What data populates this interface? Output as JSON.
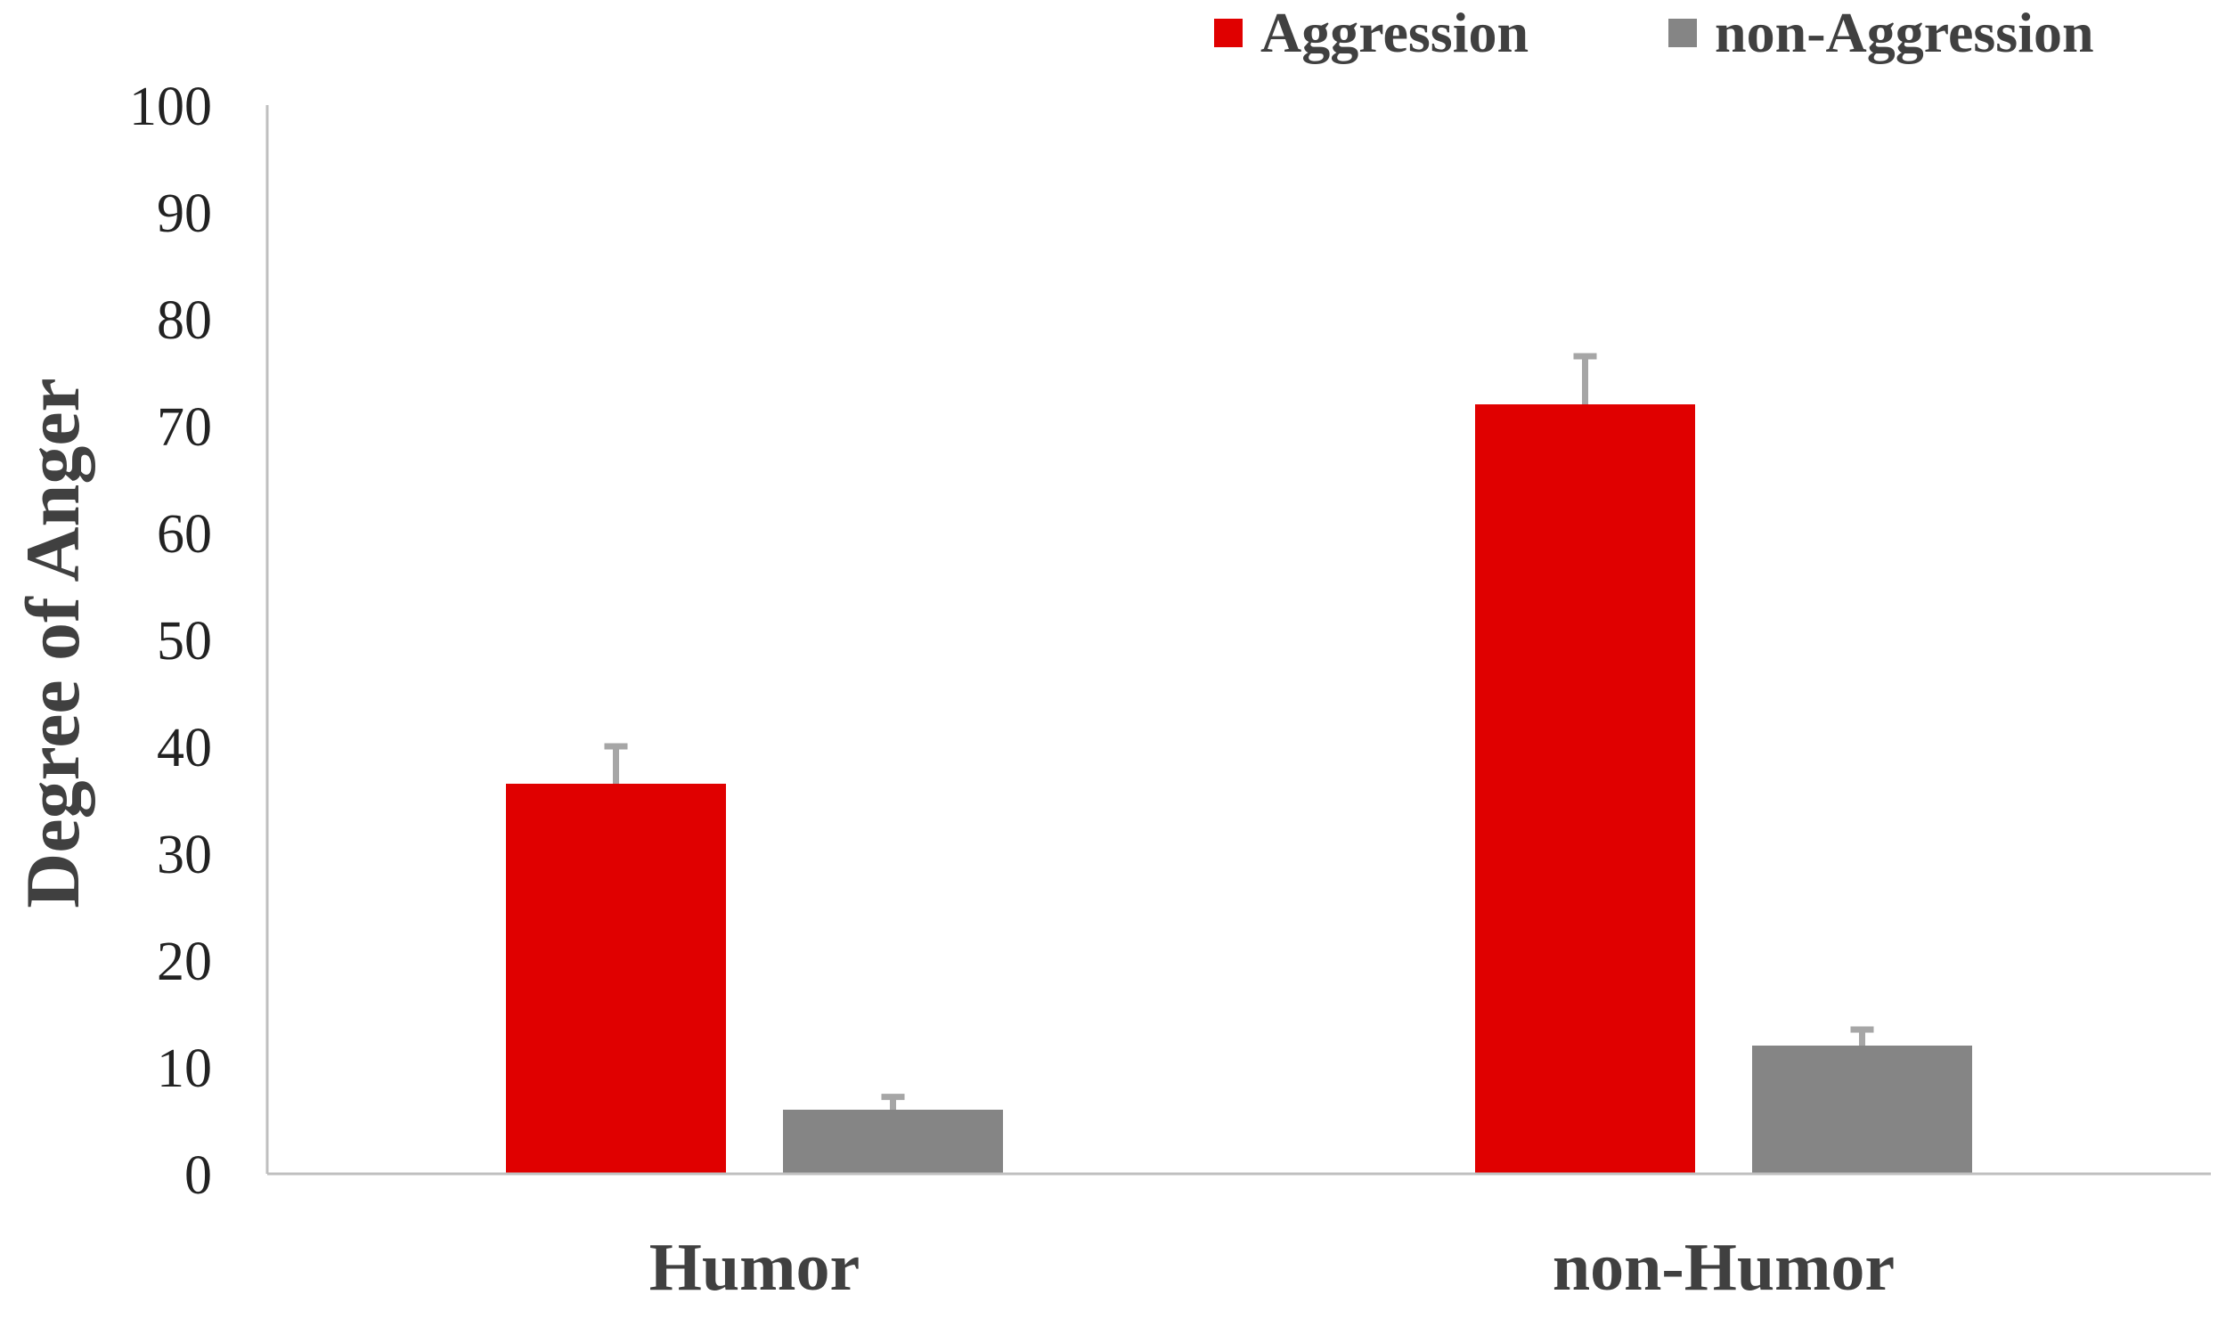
{
  "chart_data": {
    "type": "bar",
    "title": "",
    "xlabel": "",
    "ylabel": "Degree of Anger",
    "ylim": [
      0,
      100
    ],
    "yticks": [
      0,
      10,
      20,
      30,
      40,
      50,
      60,
      70,
      80,
      90,
      100
    ],
    "categories": [
      "Humor",
      "non-Humor"
    ],
    "series": [
      {
        "name": "Aggression",
        "color": "#e00000",
        "values": [
          36.5,
          72.0
        ],
        "error": [
          3.5,
          4.5
        ]
      },
      {
        "name": "non-Aggression",
        "color": "#858585",
        "values": [
          6.0,
          12.0
        ],
        "error": [
          1.2,
          1.5
        ]
      }
    ],
    "grid": false,
    "legend_position": "top-right",
    "error_bar_color": "#a6a6a6",
    "axis_color": "#bfbfbf"
  }
}
